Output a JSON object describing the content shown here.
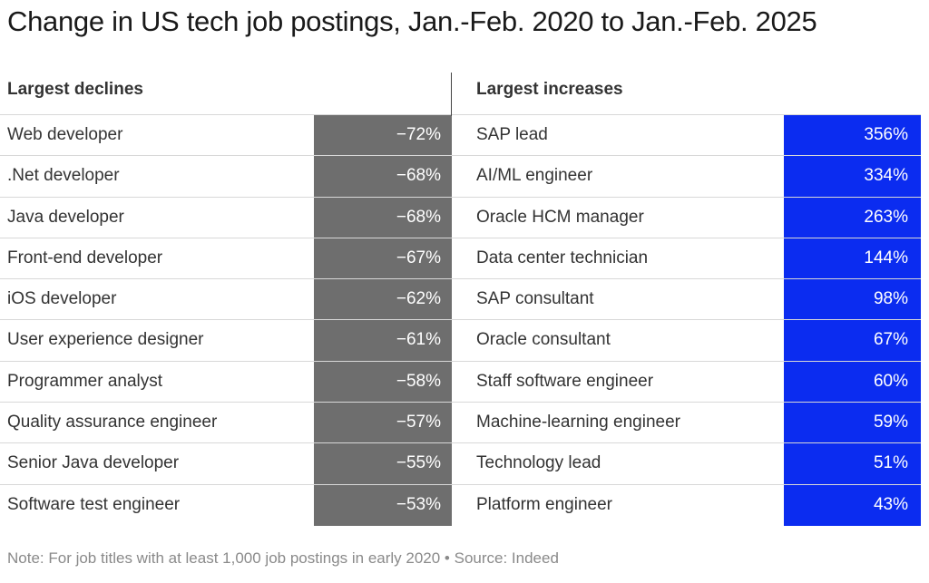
{
  "title": "Change in US tech job postings, Jan.-Feb. 2020 to Jan.-Feb. 2025",
  "note": "Note: For job titles with at least 1,000 job postings in early 2020 • Source: Indeed",
  "colors": {
    "declines_fill": "#6e6e6e",
    "increases_fill": "#0b2cf0",
    "cell_text": "#ffffff"
  },
  "chart_data": {
    "type": "table",
    "title": "Change in US tech job postings, Jan.-Feb. 2020 to Jan.-Feb. 2025",
    "declines": {
      "heading": "Largest declines",
      "rows": [
        {
          "label": "Web developer",
          "value": "−72%"
        },
        {
          "label": ".Net developer",
          "value": "−68%"
        },
        {
          "label": "Java developer",
          "value": "−68%"
        },
        {
          "label": "Front-end developer",
          "value": "−67%"
        },
        {
          "label": "iOS developer",
          "value": "−62%"
        },
        {
          "label": "User experience designer",
          "value": "−61%"
        },
        {
          "label": "Programmer analyst",
          "value": "−58%"
        },
        {
          "label": "Quality assurance engineer",
          "value": "−57%"
        },
        {
          "label": "Senior Java developer",
          "value": "−55%"
        },
        {
          "label": "Software test engineer",
          "value": "−53%"
        }
      ]
    },
    "increases": {
      "heading": "Largest increases",
      "rows": [
        {
          "label": "SAP lead",
          "value": "356%"
        },
        {
          "label": "AI/ML engineer",
          "value": "334%"
        },
        {
          "label": "Oracle HCM manager",
          "value": "263%"
        },
        {
          "label": "Data center technician",
          "value": "144%"
        },
        {
          "label": "SAP consultant",
          "value": "98%"
        },
        {
          "label": "Oracle consultant",
          "value": "67%"
        },
        {
          "label": "Staff software engineer",
          "value": "60%"
        },
        {
          "label": "Machine-learning engineer",
          "value": "59%"
        },
        {
          "label": "Technology lead",
          "value": "51%"
        },
        {
          "label": "Platform engineer",
          "value": "43%"
        }
      ]
    }
  }
}
